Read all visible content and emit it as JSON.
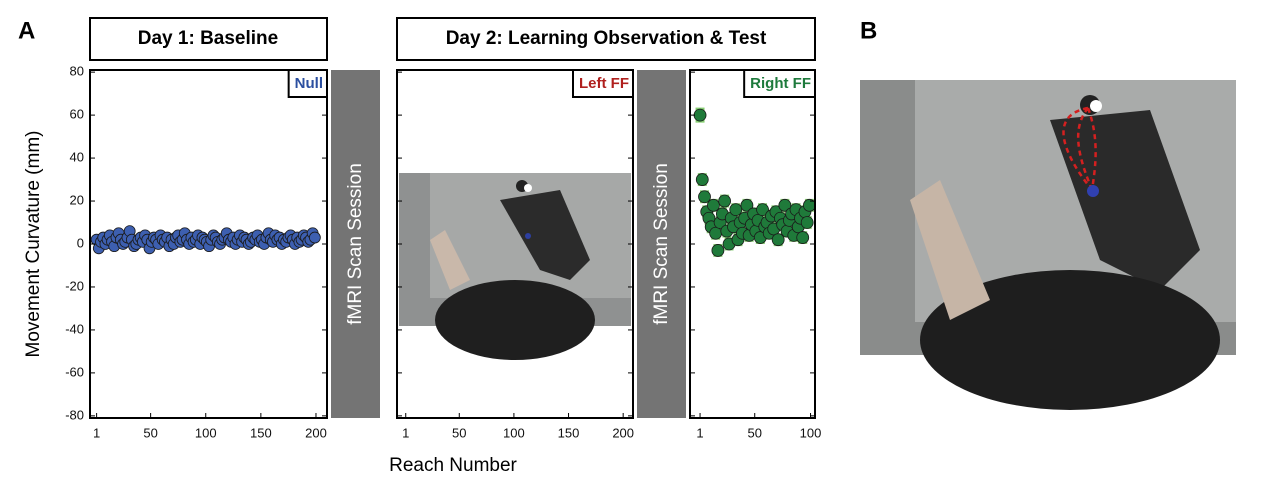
{
  "figure": {
    "panel_a": "A",
    "panel_b": "B",
    "day1_header": "Day 1: Baseline",
    "day2_header": "Day 2: Learning Observation & Test",
    "scan_label": "fMRI Scan Session",
    "y_label": "Movement Curvature (mm)",
    "x_label": "Reach Number"
  },
  "chart_data": [
    {
      "type": "scatter",
      "title": "Null",
      "title_color": "#2b4fa0",
      "color": "#3d5fb0",
      "x": [
        1,
        3,
        5,
        7,
        9,
        11,
        13,
        15,
        17,
        19,
        21,
        23,
        25,
        27,
        29,
        31,
        33,
        35,
        37,
        39,
        41,
        43,
        45,
        47,
        49,
        51,
        53,
        55,
        57,
        59,
        61,
        63,
        65,
        67,
        69,
        71,
        73,
        75,
        77,
        79,
        81,
        83,
        85,
        87,
        89,
        91,
        93,
        95,
        97,
        99,
        101,
        103,
        105,
        107,
        109,
        111,
        113,
        115,
        117,
        119,
        121,
        123,
        125,
        127,
        129,
        131,
        133,
        135,
        137,
        139,
        141,
        143,
        145,
        147,
        149,
        151,
        153,
        155,
        157,
        159,
        161,
        163,
        165,
        167,
        169,
        171,
        173,
        175,
        177,
        179,
        181,
        183,
        185,
        187,
        189,
        191,
        193,
        195,
        197,
        199
      ],
      "values": [
        2,
        -2,
        1,
        3,
        0,
        2,
        4,
        1,
        -1,
        3,
        5,
        2,
        0,
        1,
        3,
        6,
        2,
        -1,
        0,
        2,
        3,
        1,
        4,
        2,
        -2,
        1,
        3,
        2,
        0,
        4,
        2,
        1,
        3,
        -1,
        2,
        0,
        3,
        4,
        1,
        2,
        5,
        2,
        0,
        3,
        1,
        2,
        4,
        0,
        3,
        2,
        1,
        -1,
        2,
        4,
        3,
        1,
        0,
        2,
        3,
        5,
        2,
        1,
        3,
        0,
        2,
        4,
        1,
        3,
        2,
        0,
        1,
        3,
        2,
        4,
        1,
        2,
        0,
        3,
        5,
        2,
        1,
        4,
        2,
        3,
        0,
        2,
        1,
        3,
        4,
        2,
        0,
        3,
        1,
        2,
        4,
        3,
        1,
        2,
        5,
        3
      ],
      "xlim": [
        -5,
        210
      ],
      "xticks": [
        1,
        50,
        100,
        150,
        200
      ],
      "ylim": [
        -81,
        81
      ],
      "yticks": [
        80,
        60,
        40,
        20,
        0,
        -20,
        -40,
        -60,
        -80
      ]
    },
    {
      "type": "photo",
      "title": "Left FF",
      "title_color": "#b0201e",
      "xlim": [
        -7,
        209
      ],
      "xticks": [
        1,
        50,
        100,
        150,
        200
      ],
      "ylim": [
        -81,
        81
      ],
      "yticks": [
        80,
        60,
        40,
        20,
        0,
        -20,
        -40,
        -60,
        -80
      ]
    },
    {
      "type": "scatter",
      "title": "Right FF",
      "title_color": "#1e7a3c",
      "color": "#1f7a3a",
      "error_color": "#86cf72",
      "x": [
        1,
        3,
        5,
        7,
        9,
        11,
        13,
        15,
        17,
        19,
        21,
        23,
        25,
        27,
        29,
        31,
        33,
        35,
        37,
        39,
        41,
        43,
        45,
        47,
        49,
        51,
        53,
        55,
        57,
        59,
        61,
        63,
        65,
        67,
        69,
        71,
        73,
        75,
        77,
        79,
        81,
        83,
        85,
        87,
        89,
        91,
        93,
        95,
        97,
        99
      ],
      "values": [
        60,
        30,
        22,
        15,
        12,
        8,
        18,
        5,
        -3,
        10,
        14,
        20,
        6,
        0,
        12,
        8,
        16,
        2,
        10,
        5,
        12,
        18,
        4,
        9,
        14,
        6,
        11,
        3,
        16,
        8,
        10,
        5,
        13,
        7,
        15,
        2,
        12,
        9,
        18,
        6,
        11,
        14,
        4,
        16,
        8,
        12,
        3,
        15,
        10,
        18
      ],
      "errors": [
        3.5,
        3,
        3,
        3,
        3,
        3,
        3,
        3,
        3,
        3,
        3,
        3,
        3,
        3,
        3,
        3,
        3,
        3,
        3,
        3,
        3,
        3,
        3,
        3,
        3,
        3,
        3,
        3,
        3,
        3,
        3,
        3,
        3,
        3,
        3,
        3,
        3,
        3,
        3,
        3,
        3,
        3,
        3,
        3,
        3,
        3,
        3,
        3,
        3,
        3
      ],
      "xlim": [
        -8,
        104
      ],
      "xticks": [
        1,
        50,
        100
      ],
      "ylim": [
        -81,
        81
      ],
      "yticks": [
        80,
        60,
        40,
        20,
        0,
        -20,
        -40,
        -60,
        -80
      ]
    }
  ]
}
